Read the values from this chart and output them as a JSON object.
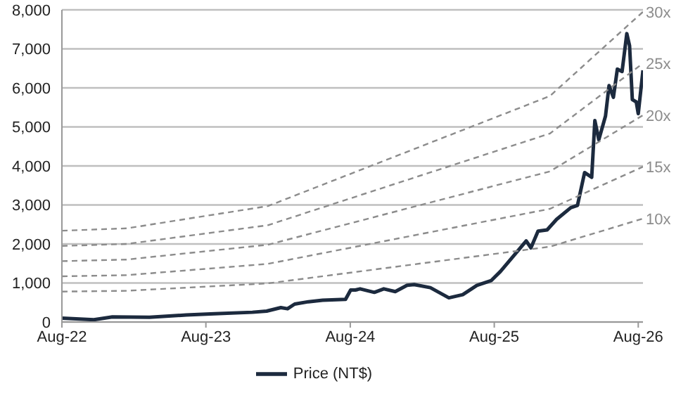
{
  "chart_data": {
    "type": "line",
    "xlim": [
      "2022-08",
      "2026-08-13"
    ],
    "xticks": [
      {
        "value": "2022-08",
        "label": "Aug-22"
      },
      {
        "value": "2023-08",
        "label": "Aug-23"
      },
      {
        "value": "2024-08",
        "label": "Aug-24"
      },
      {
        "value": "2025-08",
        "label": "Aug-25"
      },
      {
        "value": "2026-08",
        "label": "Aug-26"
      }
    ],
    "ylim": [
      0,
      8000
    ],
    "yticks": [
      {
        "value": 0,
        "label": "0"
      },
      {
        "value": 1000,
        "label": "1,000"
      },
      {
        "value": 2000,
        "label": "2,000"
      },
      {
        "value": 3000,
        "label": "3,000"
      },
      {
        "value": 4000,
        "label": "4,000"
      },
      {
        "value": 5000,
        "label": "5,000"
      },
      {
        "value": 6000,
        "label": "6,000"
      },
      {
        "value": 7000,
        "label": "7,000"
      },
      {
        "value": 8000,
        "label": "8,000"
      }
    ],
    "grid": "y",
    "legend": "bottom",
    "marker": "none",
    "series": [
      {
        "name": "Price (NT$)",
        "color": "#1c2a3e",
        "line_style": "solid",
        "x": [
          "2022-08-01",
          "2022-10-21",
          "2022-12-07",
          "2023-03-11",
          "2023-06-12",
          "2023-08-23",
          "2023-11-27",
          "2024-01-02",
          "2024-02-07",
          "2024-02-24",
          "2024-03-13",
          "2024-04-17",
          "2024-05-23",
          "2024-07-20",
          "2024-08-02",
          "2024-08-14",
          "2024-08-26",
          "2024-10-01",
          "2024-10-25",
          "2024-11-23",
          "2024-12-23",
          "2025-01-10",
          "2025-02-20",
          "2025-04-08",
          "2025-05-13",
          "2025-06-18",
          "2025-07-24",
          "2025-08-17",
          "2025-09-21",
          "2025-10-21",
          "2025-11-02",
          "2025-11-20",
          "2025-12-13",
          "2026-01-06",
          "2026-02-11",
          "2026-02-28",
          "2026-03-18",
          "2026-04-05",
          "2026-04-13",
          "2026-04-23",
          "2026-05-10",
          "2026-05-19",
          "2026-05-30",
          "2026-06-09",
          "2026-06-21",
          "2026-07-03",
          "2026-07-10",
          "2026-07-17",
          "2026-07-27",
          "2026-08-01",
          "2026-08-13"
        ],
        "values": [
          100,
          60,
          130,
          120,
          180,
          210,
          250,
          280,
          370,
          340,
          460,
          520,
          560,
          580,
          820,
          820,
          850,
          760,
          850,
          780,
          940,
          960,
          880,
          620,
          700,
          940,
          1060,
          1300,
          1720,
          2080,
          1900,
          2330,
          2360,
          2630,
          2930,
          2990,
          3830,
          3710,
          5160,
          4670,
          5280,
          6060,
          5760,
          6480,
          6420,
          7390,
          7080,
          5700,
          5640,
          5340,
          6450
        ]
      },
      {
        "name": "30x",
        "color": "#8c8c8c",
        "line_style": "dashed",
        "x": [
          "2022-08-01",
          "2023-01-12",
          "2024-01-05",
          "2025-12-20",
          "2026-08-13"
        ],
        "values": [
          2340,
          2400,
          2970,
          5790,
          7950
        ]
      },
      {
        "name": "25x",
        "color": "#8c8c8c",
        "line_style": "dashed",
        "x": [
          "2022-08-01",
          "2023-01-12",
          "2024-01-05",
          "2025-12-20",
          "2026-08-13"
        ],
        "values": [
          1950,
          2000,
          2480,
          4830,
          6630
        ]
      },
      {
        "name": "20x",
        "color": "#8c8c8c",
        "line_style": "dashed",
        "x": [
          "2022-08-01",
          "2023-01-12",
          "2024-01-05",
          "2025-12-20",
          "2026-08-13"
        ],
        "values": [
          1560,
          1600,
          1980,
          3860,
          5300
        ]
      },
      {
        "name": "15x",
        "color": "#8c8c8c",
        "line_style": "dashed",
        "x": [
          "2022-08-01",
          "2023-01-12",
          "2024-01-05",
          "2025-12-20",
          "2026-08-13"
        ],
        "values": [
          1170,
          1200,
          1490,
          2900,
          3980
        ]
      },
      {
        "name": "10x",
        "color": "#8c8c8c",
        "line_style": "dashed",
        "x": [
          "2022-08-01",
          "2023-01-12",
          "2024-01-05",
          "2025-12-20",
          "2026-08-13"
        ],
        "values": [
          780,
          800,
          990,
          1930,
          2650
        ]
      }
    ]
  }
}
